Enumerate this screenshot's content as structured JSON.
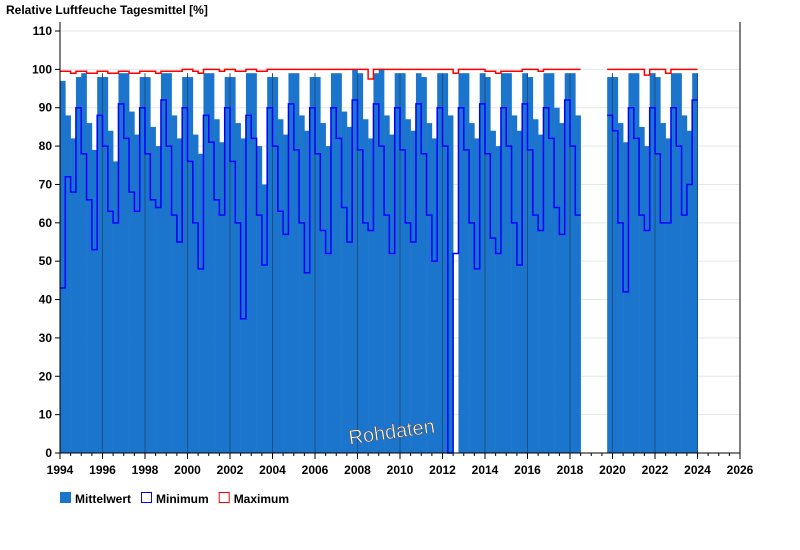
{
  "chart_data": {
    "type": "area",
    "title": "Relative Luftfeuche Tagesmittel [%]",
    "watermark": "Rohdaten",
    "xlabel": "",
    "ylabel": "",
    "xlim": [
      1994,
      2026
    ],
    "ylim": [
      0,
      110
    ],
    "xticks": [
      "1994",
      "1996",
      "1998",
      "2000",
      "2002",
      "2004",
      "2006",
      "2008",
      "2010",
      "2012",
      "2014",
      "2016",
      "2018",
      "2020",
      "2022",
      "2024",
      "2026"
    ],
    "yticks": [
      "0",
      "10",
      "20",
      "30",
      "40",
      "50",
      "60",
      "70",
      "80",
      "90",
      "100",
      "110"
    ],
    "grid": true,
    "legend": {
      "position": "bottom-left",
      "entries": [
        {
          "label": "Mittelwert",
          "color": "#1c75cc"
        },
        {
          "label": "Minimum",
          "color": "#0000ff"
        },
        {
          "label": "Maximum",
          "color": "#ff0000"
        }
      ]
    },
    "x_start": 1994,
    "step_years": 0.25,
    "series": [
      {
        "name": "Mittelwert",
        "values": [
          97,
          88,
          82,
          98,
          99,
          86,
          79,
          98,
          98,
          84,
          76,
          99,
          99,
          89,
          83,
          98,
          98,
          85,
          80,
          99,
          99,
          88,
          82,
          98,
          98,
          83,
          78,
          99,
          99,
          87,
          81,
          98,
          98,
          86,
          82,
          99,
          99,
          80,
          70,
          98,
          98,
          87,
          83,
          99,
          99,
          88,
          84,
          98,
          98,
          86,
          80,
          99,
          99,
          89,
          85,
          100,
          99,
          87,
          82,
          99,
          100,
          88,
          83,
          99,
          99,
          87,
          84,
          99,
          98,
          86,
          82,
          99,
          99,
          88,
          0,
          99,
          99,
          86,
          82,
          99,
          98,
          84,
          80,
          99,
          99,
          88,
          84,
          99,
          98,
          87,
          83,
          99,
          99,
          90,
          86,
          99,
          99,
          88,
          null,
          null,
          null,
          null,
          null,
          98,
          98,
          86,
          81,
          99,
          99,
          85,
          80,
          99,
          98,
          86,
          82,
          99,
          99,
          88,
          84,
          99
        ]
      },
      {
        "name": "Minimum",
        "values": [
          43,
          72,
          68,
          90,
          78,
          66,
          53,
          88,
          80,
          63,
          60,
          91,
          82,
          68,
          63,
          90,
          78,
          66,
          64,
          92,
          80,
          62,
          55,
          90,
          76,
          60,
          48,
          88,
          81,
          66,
          62,
          90,
          76,
          60,
          35,
          88,
          82,
          62,
          49,
          90,
          80,
          63,
          57,
          91,
          79,
          60,
          47,
          90,
          78,
          58,
          52,
          90,
          82,
          64,
          55,
          92,
          79,
          60,
          58,
          91,
          80,
          62,
          52,
          90,
          79,
          60,
          55,
          91,
          78,
          62,
          50,
          90,
          80,
          0,
          52,
          90,
          79,
          60,
          48,
          91,
          78,
          56,
          52,
          90,
          80,
          60,
          49,
          91,
          79,
          62,
          58,
          90,
          82,
          64,
          57,
          92,
          80,
          62,
          null,
          null,
          null,
          null,
          null,
          88,
          84,
          60,
          42,
          90,
          82,
          62,
          58,
          90,
          78,
          60,
          60,
          90,
          80,
          62,
          70,
          92
        ]
      },
      {
        "name": "Maximum",
        "values": [
          99.5,
          99.5,
          99,
          99.5,
          99.5,
          99,
          99,
          99.5,
          99.5,
          99,
          99,
          99.5,
          99.5,
          99,
          99,
          99.5,
          99.5,
          99.5,
          99,
          99.5,
          99.5,
          99.5,
          99.5,
          100,
          100,
          99.5,
          99,
          100,
          100,
          100,
          99.5,
          100,
          100,
          99.5,
          99.5,
          100,
          100,
          99.5,
          99.5,
          100,
          100,
          100,
          100,
          100,
          100,
          100,
          100,
          100,
          100,
          100,
          100,
          100,
          100,
          100,
          100,
          100,
          100,
          100,
          97.5,
          100,
          100,
          100,
          100,
          100,
          100,
          100,
          100,
          100,
          100,
          100,
          100,
          100,
          100,
          100,
          99,
          100,
          100,
          100,
          100,
          100,
          99.5,
          99.5,
          99,
          99.5,
          99.5,
          99.5,
          99.5,
          100,
          100,
          100,
          99.5,
          100,
          100,
          100,
          100,
          100,
          100,
          100,
          null,
          null,
          null,
          null,
          null,
          100,
          100,
          100,
          100,
          100,
          100,
          100,
          98.5,
          100,
          100,
          100,
          99,
          100,
          100,
          100,
          100,
          100
        ]
      }
    ]
  }
}
